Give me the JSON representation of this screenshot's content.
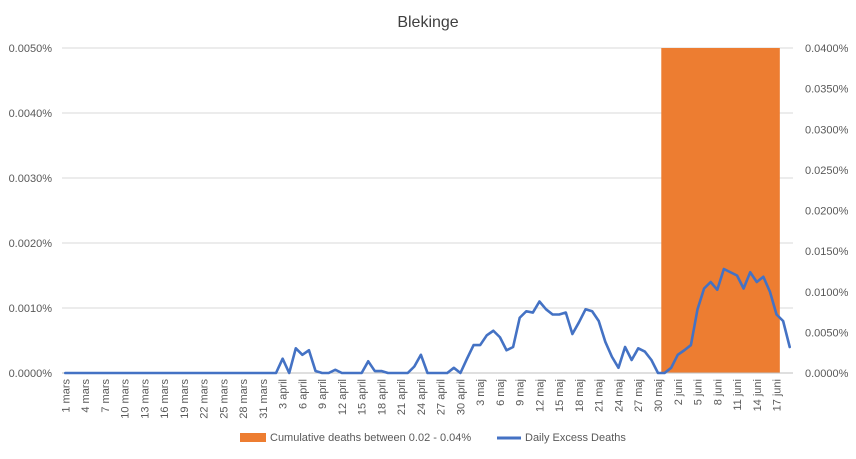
{
  "chart_data": {
    "type": "line",
    "title": "Blekinge",
    "xlabel": "",
    "ylabel": "",
    "grid": true,
    "legend_position": "bottom",
    "colors": {
      "line": "#4472C4",
      "band": "#ED7D31",
      "grid": "#D9D9D9",
      "axis": "#BFBFBF"
    },
    "y_left": {
      "ylim": [
        0,
        0.005
      ],
      "ticks": [
        0,
        0.001,
        0.002,
        0.003,
        0.004,
        0.005
      ],
      "tick_labels": [
        "0.0000%",
        "0.0010%",
        "0.0020%",
        "0.0030%",
        "0.0040%",
        "0.0050%"
      ]
    },
    "y_right": {
      "ylim": [
        0,
        0.04
      ],
      "ticks": [
        0,
        0.005,
        0.01,
        0.015,
        0.02,
        0.025,
        0.03,
        0.035,
        0.04
      ],
      "tick_labels": [
        "0.0000%",
        "0.0050%",
        "0.0100%",
        "0.0150%",
        "0.0200%",
        "0.0250%",
        "0.0300%",
        "0.0350%",
        "0.0400%"
      ]
    },
    "x_tick_labels": [
      "1 mars",
      "4 mars",
      "7 mars",
      "10 mars",
      "13 mars",
      "16 mars",
      "19 mars",
      "22 mars",
      "25 mars",
      "28 mars",
      "31 mars",
      "3 april",
      "6 april",
      "9 april",
      "12 april",
      "15 april",
      "18 april",
      "21 april",
      "24 april",
      "27 april",
      "30 april",
      "3 maj",
      "6 maj",
      "9 maj",
      "12 maj",
      "15 maj",
      "18 maj",
      "21 maj",
      "24 maj",
      "27 maj",
      "30 maj",
      "2 juni",
      "5 juni",
      "8 juni",
      "11 juni",
      "14 juni",
      "17 juni"
    ],
    "series": [
      {
        "name": "Daily Excess Deaths",
        "axis": "left",
        "values": [
          0,
          0,
          0,
          0,
          0,
          0,
          0,
          0,
          0,
          0,
          0,
          0,
          0,
          0,
          0,
          0,
          0,
          0,
          0,
          0,
          0,
          0,
          0,
          0,
          0,
          0,
          0,
          0,
          0,
          0,
          0,
          0,
          0,
          0.00022,
          0,
          0.00038,
          0.00028,
          0.00035,
          3e-05,
          0,
          0,
          5e-05,
          0,
          0,
          0,
          0,
          0.00018,
          3e-05,
          3e-05,
          0,
          0,
          0,
          0,
          0.0001,
          0.00028,
          0,
          0,
          0,
          0,
          8e-05,
          0,
          0.00022,
          0.00043,
          0.00043,
          0.00058,
          0.00065,
          0.00055,
          0.00035,
          0.0004,
          0.00085,
          0.00095,
          0.00093,
          0.0011,
          0.00098,
          0.0009,
          0.0009,
          0.00093,
          0.0006,
          0.00078,
          0.00098,
          0.00095,
          0.0008,
          0.00048,
          0.00025,
          8e-05,
          0.0004,
          0.0002,
          0.00038,
          0.00033,
          0.0002,
          0,
          0,
          8e-05,
          0.00028,
          0.00035,
          0.00043,
          0.00098,
          0.0013,
          0.0014,
          0.00128,
          0.0016,
          0.00155,
          0.0015,
          0.0013,
          0.00155,
          0.0014,
          0.00148,
          0.00125,
          0.0009,
          0.0008,
          0.0004
        ]
      }
    ],
    "band": {
      "name": "Cumulative deaths between 0.02 - 0.04%",
      "start_date": "30 maj",
      "end_date": "17 juni",
      "value_top": 0.005
    }
  }
}
